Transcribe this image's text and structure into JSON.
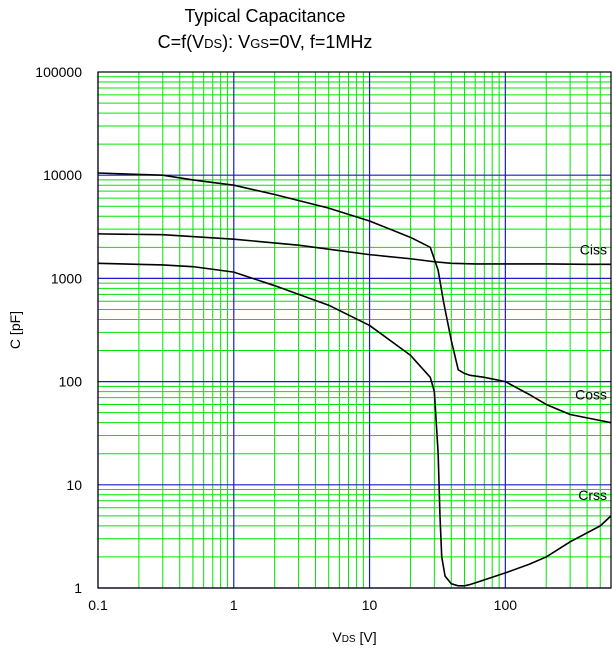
{
  "chart_data": {
    "type": "line",
    "title": "Typical Capacitance",
    "subtitle": {
      "p1": "C=f(V",
      "p2": "DS",
      "p3": "): V",
      "p4": "GS",
      "p5": "=0V, f=1MHz"
    },
    "xlabel": {
      "main": "V",
      "sub": "DS",
      "unit": " [V]"
    },
    "ylabel": "C [pF]",
    "xscale": "log",
    "yscale": "log",
    "xlim": [
      0.1,
      600
    ],
    "ylim": [
      1,
      100000
    ],
    "grid": true,
    "x_ticks": [
      {
        "value": 0.1,
        "label": "0.1"
      },
      {
        "value": 1,
        "label": "1"
      },
      {
        "value": 10,
        "label": "10"
      },
      {
        "value": 100,
        "label": "100"
      }
    ],
    "y_ticks": [
      {
        "value": 1,
        "label": "1"
      },
      {
        "value": 10,
        "label": "10"
      },
      {
        "value": 100,
        "label": "100"
      },
      {
        "value": 1000,
        "label": "1000"
      },
      {
        "value": 10000,
        "label": "10000"
      },
      {
        "value": 100000,
        "label": "100000"
      }
    ],
    "series": [
      {
        "name": "Ciss",
        "x": [
          0.1,
          0.3,
          1,
          3,
          10,
          20,
          30,
          40,
          60,
          100,
          200,
          400,
          600
        ],
        "y": [
          2700,
          2650,
          2400,
          2100,
          1700,
          1550,
          1450,
          1400,
          1380,
          1380,
          1380,
          1370,
          1370
        ]
      },
      {
        "name": "Coss",
        "x": [
          0.1,
          0.3,
          0.5,
          1,
          2,
          5,
          10,
          20,
          28,
          32,
          35,
          40,
          45,
          50,
          55,
          70,
          100,
          150,
          200,
          300,
          500,
          600
        ],
        "y": [
          10500,
          10000,
          9000,
          8000,
          6500,
          4800,
          3600,
          2500,
          2000,
          1200,
          600,
          250,
          130,
          120,
          115,
          110,
          100,
          75,
          60,
          48,
          42,
          40
        ]
      },
      {
        "name": "Crss",
        "x": [
          0.1,
          0.3,
          0.5,
          1,
          2,
          5,
          10,
          20,
          28,
          30,
          32,
          33,
          34,
          36,
          40,
          45,
          50,
          55,
          60,
          70,
          100,
          150,
          200,
          300,
          500,
          600
        ],
        "y": [
          1400,
          1350,
          1300,
          1150,
          850,
          550,
          350,
          180,
          110,
          80,
          20,
          5,
          2,
          1.3,
          1.1,
          1.05,
          1.05,
          1.08,
          1.12,
          1.2,
          1.4,
          1.7,
          2.0,
          2.8,
          4.0,
          5.0
        ]
      }
    ],
    "colors": {
      "minor_grid": "#00e600",
      "major_grid": "#1a1acc",
      "curve": "#000000",
      "frame": "#000000"
    }
  }
}
